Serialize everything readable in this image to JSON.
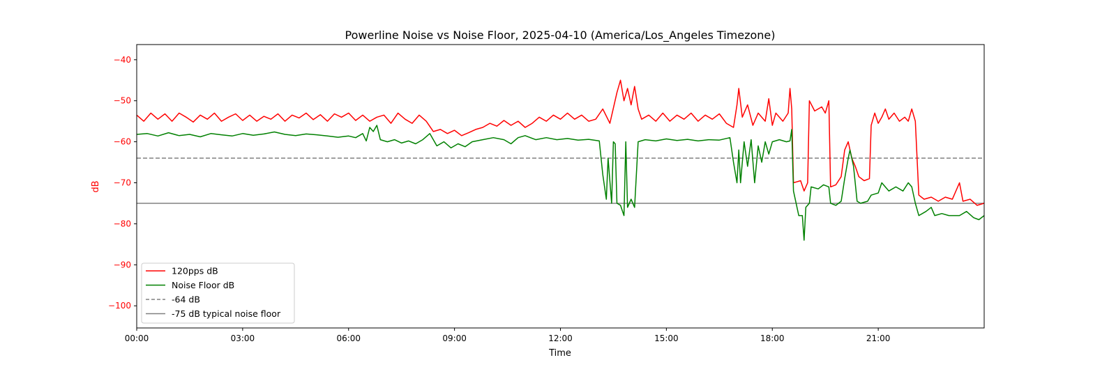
{
  "chart_data": {
    "type": "line",
    "title": "Powerline Noise vs Noise Floor, 2025-04-10 (America/Los_Angeles Timezone)",
    "xlabel": "Time",
    "ylabel": "dB",
    "xlim": [
      0,
      24
    ],
    "ylim": [
      -105.4,
      -36.3
    ],
    "x_unit": "hours",
    "xticks": [
      0,
      3,
      6,
      9,
      12,
      15,
      18,
      21
    ],
    "xtick_labels": [
      "00:00",
      "03:00",
      "06:00",
      "09:00",
      "12:00",
      "15:00",
      "18:00",
      "21:00"
    ],
    "yticks": [
      -40,
      -50,
      -60,
      -70,
      -80,
      -90,
      -100
    ],
    "ytick_labels": [
      "−40",
      "−50",
      "−60",
      "−70",
      "−80",
      "−90",
      "−100"
    ],
    "grid": false,
    "legend_position": "bottom-left",
    "colors": {
      "red": "#ff0000",
      "green": "#008000",
      "ref": "#808080",
      "ylabel": "#ff0000"
    },
    "series": [
      {
        "name": "120pps dB",
        "color": "#ff0000",
        "points": [
          [
            0,
            -53.5
          ],
          [
            0.2,
            -55
          ],
          [
            0.4,
            -53
          ],
          [
            0.6,
            -54.5
          ],
          [
            0.8,
            -53.2
          ],
          [
            1,
            -55
          ],
          [
            1.2,
            -53
          ],
          [
            1.4,
            -54
          ],
          [
            1.6,
            -55.2
          ],
          [
            1.8,
            -53.5
          ],
          [
            2,
            -54.5
          ],
          [
            2.2,
            -53
          ],
          [
            2.4,
            -55
          ],
          [
            2.6,
            -54
          ],
          [
            2.8,
            -53.2
          ],
          [
            3,
            -54.8
          ],
          [
            3.2,
            -53.5
          ],
          [
            3.4,
            -55
          ],
          [
            3.6,
            -53.8
          ],
          [
            3.8,
            -54.5
          ],
          [
            4,
            -53.2
          ],
          [
            4.2,
            -55
          ],
          [
            4.4,
            -53.5
          ],
          [
            4.6,
            -54.2
          ],
          [
            4.8,
            -53
          ],
          [
            5,
            -54.6
          ],
          [
            5.2,
            -53.4
          ],
          [
            5.4,
            -55
          ],
          [
            5.6,
            -53.2
          ],
          [
            5.8,
            -54
          ],
          [
            6,
            -53
          ],
          [
            6.2,
            -54.8
          ],
          [
            6.4,
            -53.5
          ],
          [
            6.6,
            -55
          ],
          [
            6.8,
            -54
          ],
          [
            7,
            -53.5
          ],
          [
            7.2,
            -55.5
          ],
          [
            7.4,
            -53
          ],
          [
            7.6,
            -54.5
          ],
          [
            7.8,
            -55.5
          ],
          [
            8,
            -53.5
          ],
          [
            8.2,
            -55
          ],
          [
            8.4,
            -57.5
          ],
          [
            8.6,
            -57
          ],
          [
            8.8,
            -58
          ],
          [
            9,
            -57.2
          ],
          [
            9.2,
            -58.5
          ],
          [
            9.4,
            -57.8
          ],
          [
            9.6,
            -57
          ],
          [
            9.8,
            -56.5
          ],
          [
            10,
            -55.5
          ],
          [
            10.2,
            -56.2
          ],
          [
            10.4,
            -54.8
          ],
          [
            10.6,
            -56
          ],
          [
            10.8,
            -55
          ],
          [
            11,
            -56.5
          ],
          [
            11.2,
            -55.5
          ],
          [
            11.4,
            -54
          ],
          [
            11.6,
            -55
          ],
          [
            11.8,
            -53.5
          ],
          [
            12,
            -54.5
          ],
          [
            12.2,
            -53
          ],
          [
            12.4,
            -54.5
          ],
          [
            12.6,
            -53.5
          ],
          [
            12.8,
            -55
          ],
          [
            13,
            -54.5
          ],
          [
            13.2,
            -52
          ],
          [
            13.4,
            -55.5
          ],
          [
            13.6,
            -48
          ],
          [
            13.7,
            -45
          ],
          [
            13.8,
            -50
          ],
          [
            13.9,
            -47
          ],
          [
            14,
            -51
          ],
          [
            14.1,
            -46.5
          ],
          [
            14.2,
            -52
          ],
          [
            14.3,
            -54.5
          ],
          [
            14.5,
            -53.5
          ],
          [
            14.7,
            -55
          ],
          [
            14.9,
            -53
          ],
          [
            15.1,
            -55
          ],
          [
            15.3,
            -53.5
          ],
          [
            15.5,
            -54.5
          ],
          [
            15.7,
            -53
          ],
          [
            15.9,
            -55
          ],
          [
            16.1,
            -53.5
          ],
          [
            16.3,
            -54.5
          ],
          [
            16.5,
            -53.2
          ],
          [
            16.7,
            -55.5
          ],
          [
            16.9,
            -56.5
          ],
          [
            17,
            -51
          ],
          [
            17.05,
            -47
          ],
          [
            17.15,
            -54
          ],
          [
            17.3,
            -51
          ],
          [
            17.45,
            -56
          ],
          [
            17.6,
            -53
          ],
          [
            17.8,
            -55
          ],
          [
            17.9,
            -49.5
          ],
          [
            18,
            -56
          ],
          [
            18.1,
            -53
          ],
          [
            18.3,
            -55
          ],
          [
            18.45,
            -53
          ],
          [
            18.5,
            -47
          ],
          [
            18.55,
            -52
          ],
          [
            18.6,
            -70
          ],
          [
            18.8,
            -69.5
          ],
          [
            18.9,
            -72
          ],
          [
            19,
            -70
          ],
          [
            19.05,
            -50
          ],
          [
            19.2,
            -52.5
          ],
          [
            19.4,
            -51.5
          ],
          [
            19.5,
            -53
          ],
          [
            19.6,
            -50
          ],
          [
            19.65,
            -71
          ],
          [
            19.8,
            -70.5
          ],
          [
            19.95,
            -68.5
          ],
          [
            20.05,
            -62
          ],
          [
            20.15,
            -60
          ],
          [
            20.25,
            -64
          ],
          [
            20.35,
            -66
          ],
          [
            20.45,
            -68.5
          ],
          [
            20.6,
            -69.5
          ],
          [
            20.75,
            -69
          ],
          [
            20.8,
            -56
          ],
          [
            20.9,
            -53
          ],
          [
            21,
            -55.5
          ],
          [
            21.1,
            -54
          ],
          [
            21.2,
            -52
          ],
          [
            21.3,
            -54.5
          ],
          [
            21.45,
            -53
          ],
          [
            21.6,
            -55
          ],
          [
            21.75,
            -54
          ],
          [
            21.85,
            -55
          ],
          [
            21.95,
            -52
          ],
          [
            22.05,
            -55
          ],
          [
            22.15,
            -73
          ],
          [
            22.3,
            -74
          ],
          [
            22.5,
            -73.5
          ],
          [
            22.7,
            -74.5
          ],
          [
            22.9,
            -73.5
          ],
          [
            23.1,
            -74
          ],
          [
            23.3,
            -70
          ],
          [
            23.4,
            -74.5
          ],
          [
            23.6,
            -74
          ],
          [
            23.8,
            -75.5
          ],
          [
            24,
            -75
          ]
        ]
      },
      {
        "name": "Noise Floor dB",
        "color": "#008000",
        "points": [
          [
            0,
            -58.2
          ],
          [
            0.3,
            -58
          ],
          [
            0.6,
            -58.6
          ],
          [
            0.9,
            -57.8
          ],
          [
            1.2,
            -58.5
          ],
          [
            1.5,
            -58.2
          ],
          [
            1.8,
            -58.8
          ],
          [
            2.1,
            -58
          ],
          [
            2.4,
            -58.3
          ],
          [
            2.7,
            -58.6
          ],
          [
            3,
            -58
          ],
          [
            3.3,
            -58.4
          ],
          [
            3.6,
            -58.1
          ],
          [
            3.9,
            -57.6
          ],
          [
            4.2,
            -58.2
          ],
          [
            4.5,
            -58.5
          ],
          [
            4.8,
            -58.1
          ],
          [
            5.1,
            -58.3
          ],
          [
            5.4,
            -58.6
          ],
          [
            5.7,
            -58.9
          ],
          [
            6,
            -58.6
          ],
          [
            6.2,
            -59
          ],
          [
            6.4,
            -58
          ],
          [
            6.5,
            -59.8
          ],
          [
            6.6,
            -56.5
          ],
          [
            6.7,
            -57.5
          ],
          [
            6.8,
            -56
          ],
          [
            6.9,
            -59.5
          ],
          [
            7.1,
            -60
          ],
          [
            7.3,
            -59.5
          ],
          [
            7.5,
            -60.3
          ],
          [
            7.7,
            -59.8
          ],
          [
            7.9,
            -60.5
          ],
          [
            8.1,
            -59.5
          ],
          [
            8.3,
            -58
          ],
          [
            8.5,
            -61
          ],
          [
            8.7,
            -60
          ],
          [
            8.9,
            -61.5
          ],
          [
            9.1,
            -60.5
          ],
          [
            9.3,
            -61.2
          ],
          [
            9.5,
            -60
          ],
          [
            9.8,
            -59.5
          ],
          [
            10.1,
            -59
          ],
          [
            10.4,
            -59.5
          ],
          [
            10.6,
            -60.5
          ],
          [
            10.8,
            -59
          ],
          [
            11,
            -58.5
          ],
          [
            11.3,
            -59.5
          ],
          [
            11.6,
            -59
          ],
          [
            11.9,
            -59.5
          ],
          [
            12.2,
            -59.2
          ],
          [
            12.5,
            -59.6
          ],
          [
            12.8,
            -59.4
          ],
          [
            13.1,
            -59.8
          ],
          [
            13.2,
            -68
          ],
          [
            13.3,
            -74
          ],
          [
            13.35,
            -64
          ],
          [
            13.45,
            -75
          ],
          [
            13.5,
            -60
          ],
          [
            13.55,
            -60.5
          ],
          [
            13.6,
            -75
          ],
          [
            13.7,
            -75.5
          ],
          [
            13.8,
            -78
          ],
          [
            13.85,
            -60
          ],
          [
            13.9,
            -76
          ],
          [
            14,
            -74
          ],
          [
            14.1,
            -76
          ],
          [
            14.2,
            -60
          ],
          [
            14.4,
            -59.5
          ],
          [
            14.7,
            -59.8
          ],
          [
            15,
            -59.3
          ],
          [
            15.3,
            -59.7
          ],
          [
            15.6,
            -59.4
          ],
          [
            15.9,
            -59.8
          ],
          [
            16.2,
            -59.5
          ],
          [
            16.5,
            -59.6
          ],
          [
            16.8,
            -59
          ],
          [
            16.9,
            -65
          ],
          [
            17,
            -70
          ],
          [
            17.05,
            -62
          ],
          [
            17.1,
            -70
          ],
          [
            17.2,
            -60
          ],
          [
            17.3,
            -66
          ],
          [
            17.4,
            -59.5
          ],
          [
            17.5,
            -70
          ],
          [
            17.6,
            -61
          ],
          [
            17.7,
            -65
          ],
          [
            17.8,
            -60
          ],
          [
            17.9,
            -63
          ],
          [
            18,
            -60
          ],
          [
            18.2,
            -59.5
          ],
          [
            18.4,
            -60
          ],
          [
            18.5,
            -59.8
          ],
          [
            18.55,
            -57
          ],
          [
            18.6,
            -72
          ],
          [
            18.75,
            -78
          ],
          [
            18.85,
            -78
          ],
          [
            18.9,
            -84
          ],
          [
            18.95,
            -76
          ],
          [
            19.05,
            -75
          ],
          [
            19.1,
            -71
          ],
          [
            19.3,
            -71.5
          ],
          [
            19.45,
            -70.5
          ],
          [
            19.6,
            -71
          ],
          [
            19.65,
            -75
          ],
          [
            19.8,
            -75.5
          ],
          [
            19.95,
            -74.5
          ],
          [
            20.05,
            -69
          ],
          [
            20.15,
            -64
          ],
          [
            20.2,
            -62
          ],
          [
            20.3,
            -66
          ],
          [
            20.4,
            -74.5
          ],
          [
            20.5,
            -75
          ],
          [
            20.7,
            -74.5
          ],
          [
            20.8,
            -73
          ],
          [
            21,
            -72.5
          ],
          [
            21.1,
            -70
          ],
          [
            21.3,
            -72
          ],
          [
            21.5,
            -71
          ],
          [
            21.7,
            -72
          ],
          [
            21.85,
            -70
          ],
          [
            21.95,
            -71
          ],
          [
            22.05,
            -75
          ],
          [
            22.15,
            -78
          ],
          [
            22.35,
            -77
          ],
          [
            22.5,
            -76
          ],
          [
            22.6,
            -78
          ],
          [
            22.8,
            -77.5
          ],
          [
            23,
            -78
          ],
          [
            23.3,
            -78
          ],
          [
            23.5,
            -77
          ],
          [
            23.7,
            -78.5
          ],
          [
            23.85,
            -79
          ],
          [
            24,
            -78
          ]
        ]
      }
    ],
    "reference_lines": [
      {
        "name": "-64 dB",
        "value": -64,
        "style": "dashed",
        "color": "#808080"
      },
      {
        "name": "-75 dB typical noise floor",
        "value": -75,
        "style": "solid",
        "color": "#808080"
      }
    ]
  }
}
